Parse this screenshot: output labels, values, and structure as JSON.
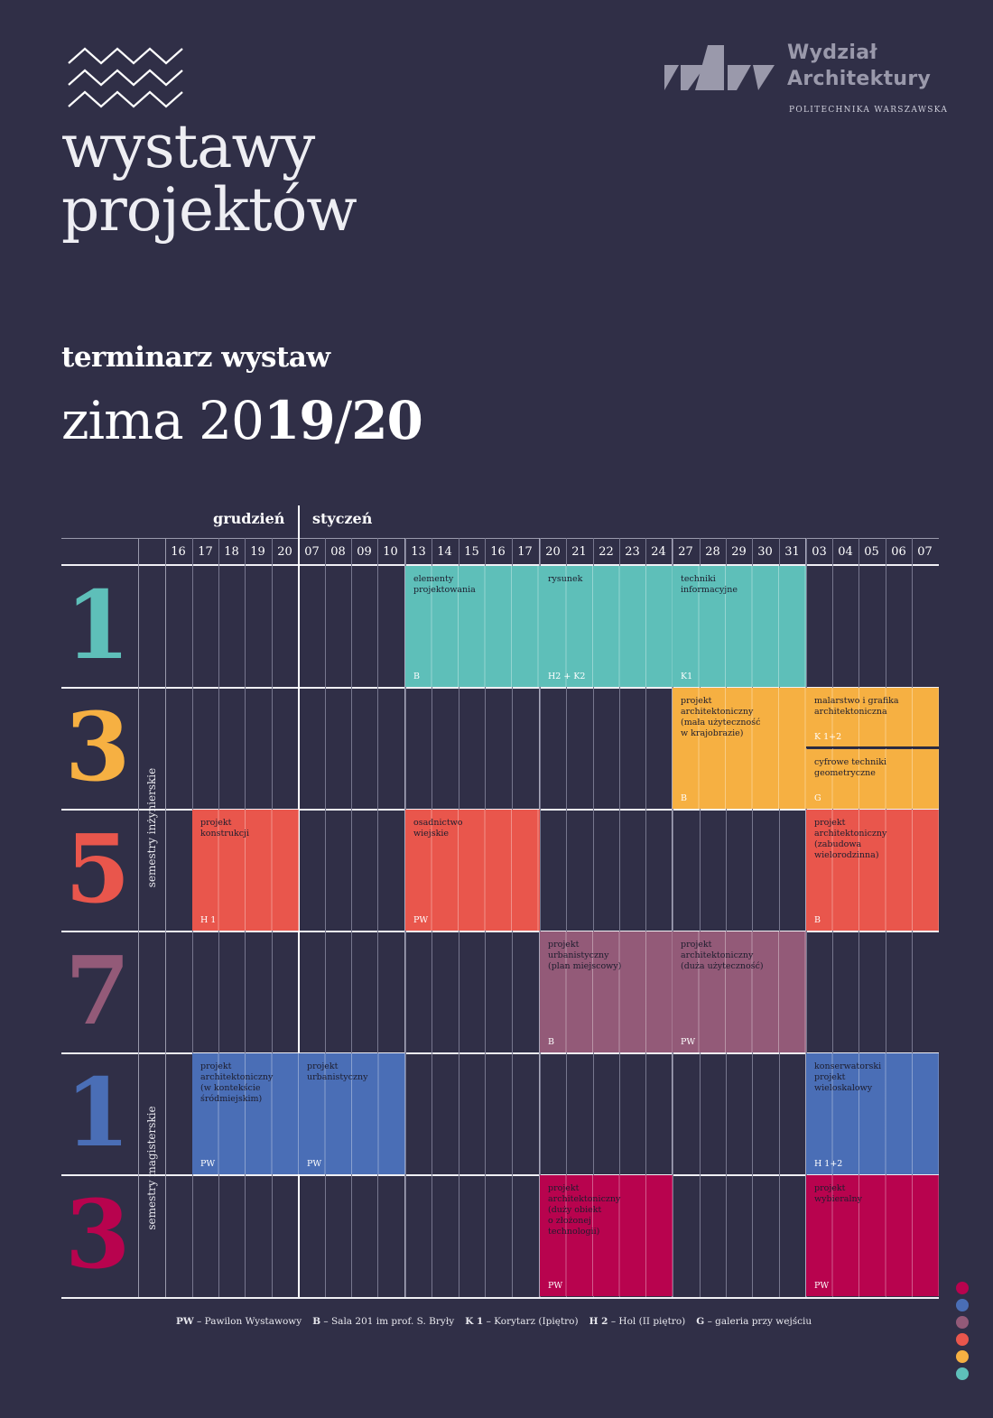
{
  "header": {
    "title_line1": "wystawy",
    "title_line2": "projektów",
    "faculty_line1": "Wydział",
    "faculty_line2": "Architektury",
    "university": "POLITECHNIKA WARSZAWSKA"
  },
  "subtitle": "terminarz wystaw",
  "season": {
    "prefix": "zima 20",
    "year1": "19",
    "slash": "/",
    "year2": "20"
  },
  "months": [
    "grudzień",
    "styczeń"
  ],
  "days": [
    "16",
    "17",
    "18",
    "19",
    "20",
    "07",
    "08",
    "09",
    "10",
    "13",
    "14",
    "15",
    "16",
    "17",
    "20",
    "21",
    "22",
    "23",
    "24",
    "27",
    "28",
    "29",
    "30",
    "31",
    "03",
    "04",
    "05",
    "06",
    "07"
  ],
  "group_labels": [
    "semestry inżynierskie",
    "semestry magisterskie"
  ],
  "semesters": [
    "1",
    "3",
    "5",
    "7",
    "1",
    "3"
  ],
  "semester_colors": [
    "#5ebfb9",
    "#f6b042",
    "#e9564c",
    "#935a78",
    "#4a6eb6",
    "#b8034e"
  ],
  "exhibitions": [
    {
      "row": 0,
      "start": 9,
      "span": 5,
      "label": "elementy\nprojektowania",
      "loc": "B",
      "color": "#5ebfb9"
    },
    {
      "row": 0,
      "start": 14,
      "span": 5,
      "label": "rysunek",
      "loc": "H2 + K2",
      "color": "#5ebfb9"
    },
    {
      "row": 0,
      "start": 19,
      "span": 5,
      "label": "techniki\ninformacyjne",
      "loc": "K1",
      "color": "#5ebfb9"
    },
    {
      "row": 1,
      "start": 19,
      "span": 5,
      "label": "projekt\narchitektoniczny\n(mała użyteczność\nw krajobrazie)",
      "loc": "B",
      "color": "#f6b042"
    },
    {
      "row": 1,
      "start": 24,
      "span": 5,
      "half": "top",
      "label": "malarstwo i grafika\narchitektoniczna",
      "loc": "K 1+2",
      "color": "#f6b042"
    },
    {
      "row": 1,
      "start": 24,
      "span": 5,
      "half": "bottom",
      "label": "cyfrowe techniki\ngeometryczne",
      "loc": "G",
      "color": "#f6b042"
    },
    {
      "row": 2,
      "start": 1,
      "span": 4,
      "label": "projekt\nkonstrukcji",
      "loc": "H 1",
      "color": "#e9564c"
    },
    {
      "row": 2,
      "start": 9,
      "span": 5,
      "label": "osadnictwo\nwiejskie",
      "loc": "PW",
      "color": "#e9564c"
    },
    {
      "row": 2,
      "start": 24,
      "span": 5,
      "label": "projekt\narchitektoniczny\n(zabudowa\nwielorodzinna)",
      "loc": "B",
      "color": "#e9564c"
    },
    {
      "row": 3,
      "start": 14,
      "span": 5,
      "label": "projekt\nurbanistyczny\n(plan miejscowy)",
      "loc": "B",
      "color": "#935a78"
    },
    {
      "row": 3,
      "start": 19,
      "span": 5,
      "label": "projekt\narchitektoniczny\n(duża użyteczność)",
      "loc": "PW",
      "color": "#935a78"
    },
    {
      "row": 4,
      "start": 1,
      "span": 4,
      "label": "projekt\narchitektoniczny\n(w kontekście\nśródmiejskim)",
      "loc": "PW",
      "color": "#4a6eb6"
    },
    {
      "row": 4,
      "start": 5,
      "span": 4,
      "label": "projekt\nurbanistyczny",
      "loc": "PW",
      "color": "#4a6eb6"
    },
    {
      "row": 4,
      "start": 24,
      "span": 5,
      "label": "konserwatorski\nprojekt\nwieloskalowy",
      "loc": "H 1+2",
      "color": "#4a6eb6"
    },
    {
      "row": 5,
      "start": 14,
      "span": 5,
      "label": "projekt\narchitektoniczny\n(duży obiekt\no złożonej\ntechnologii)",
      "loc": "PW",
      "color": "#b8034e"
    },
    {
      "row": 5,
      "start": 24,
      "span": 5,
      "label": "projekt\nwybieralny",
      "loc": "PW",
      "color": "#b8034e"
    }
  ],
  "legend": [
    {
      "key": "PW",
      "text": " – Pawilon  Wystawowy"
    },
    {
      "key": "B",
      "text": " – Sala 201 im prof. S. Bryły"
    },
    {
      "key": "K 1",
      "text": " – Korytarz (Ipiętro)"
    },
    {
      "key": "H 2",
      "text": " – Hol (II piętro)"
    },
    {
      "key": "G",
      "text": " – galeria przy wejściu"
    }
  ],
  "dots": [
    "#b8034e",
    "#4a6eb6",
    "#935a78",
    "#e9564c",
    "#f6b042",
    "#5ebfb9"
  ]
}
